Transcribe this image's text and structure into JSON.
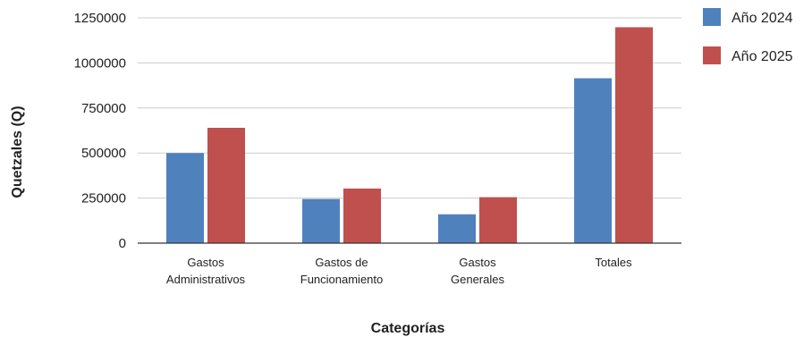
{
  "chart_data": {
    "type": "bar",
    "categories": [
      [
        "Gastos",
        "Administrativos"
      ],
      [
        "Gastos de",
        "Funcionamiento"
      ],
      [
        "Gastos",
        "Generales"
      ],
      [
        "Totales"
      ]
    ],
    "series": [
      {
        "name": "Año 2024",
        "color": "#4f81bd",
        "values": [
          500000,
          245000,
          160000,
          915000
        ]
      },
      {
        "name": "Año 2025",
        "color": "#c0504d",
        "values": [
          640000,
          303000,
          255000,
          1198000
        ]
      }
    ],
    "xlabel": "Categorías",
    "ylabel": "Quetzales (Q)",
    "ylim": [
      0,
      1250000
    ],
    "yticks": [
      0,
      250000,
      500000,
      750000,
      1000000,
      1250000
    ],
    "grid": true,
    "legend_position": "top-right"
  }
}
